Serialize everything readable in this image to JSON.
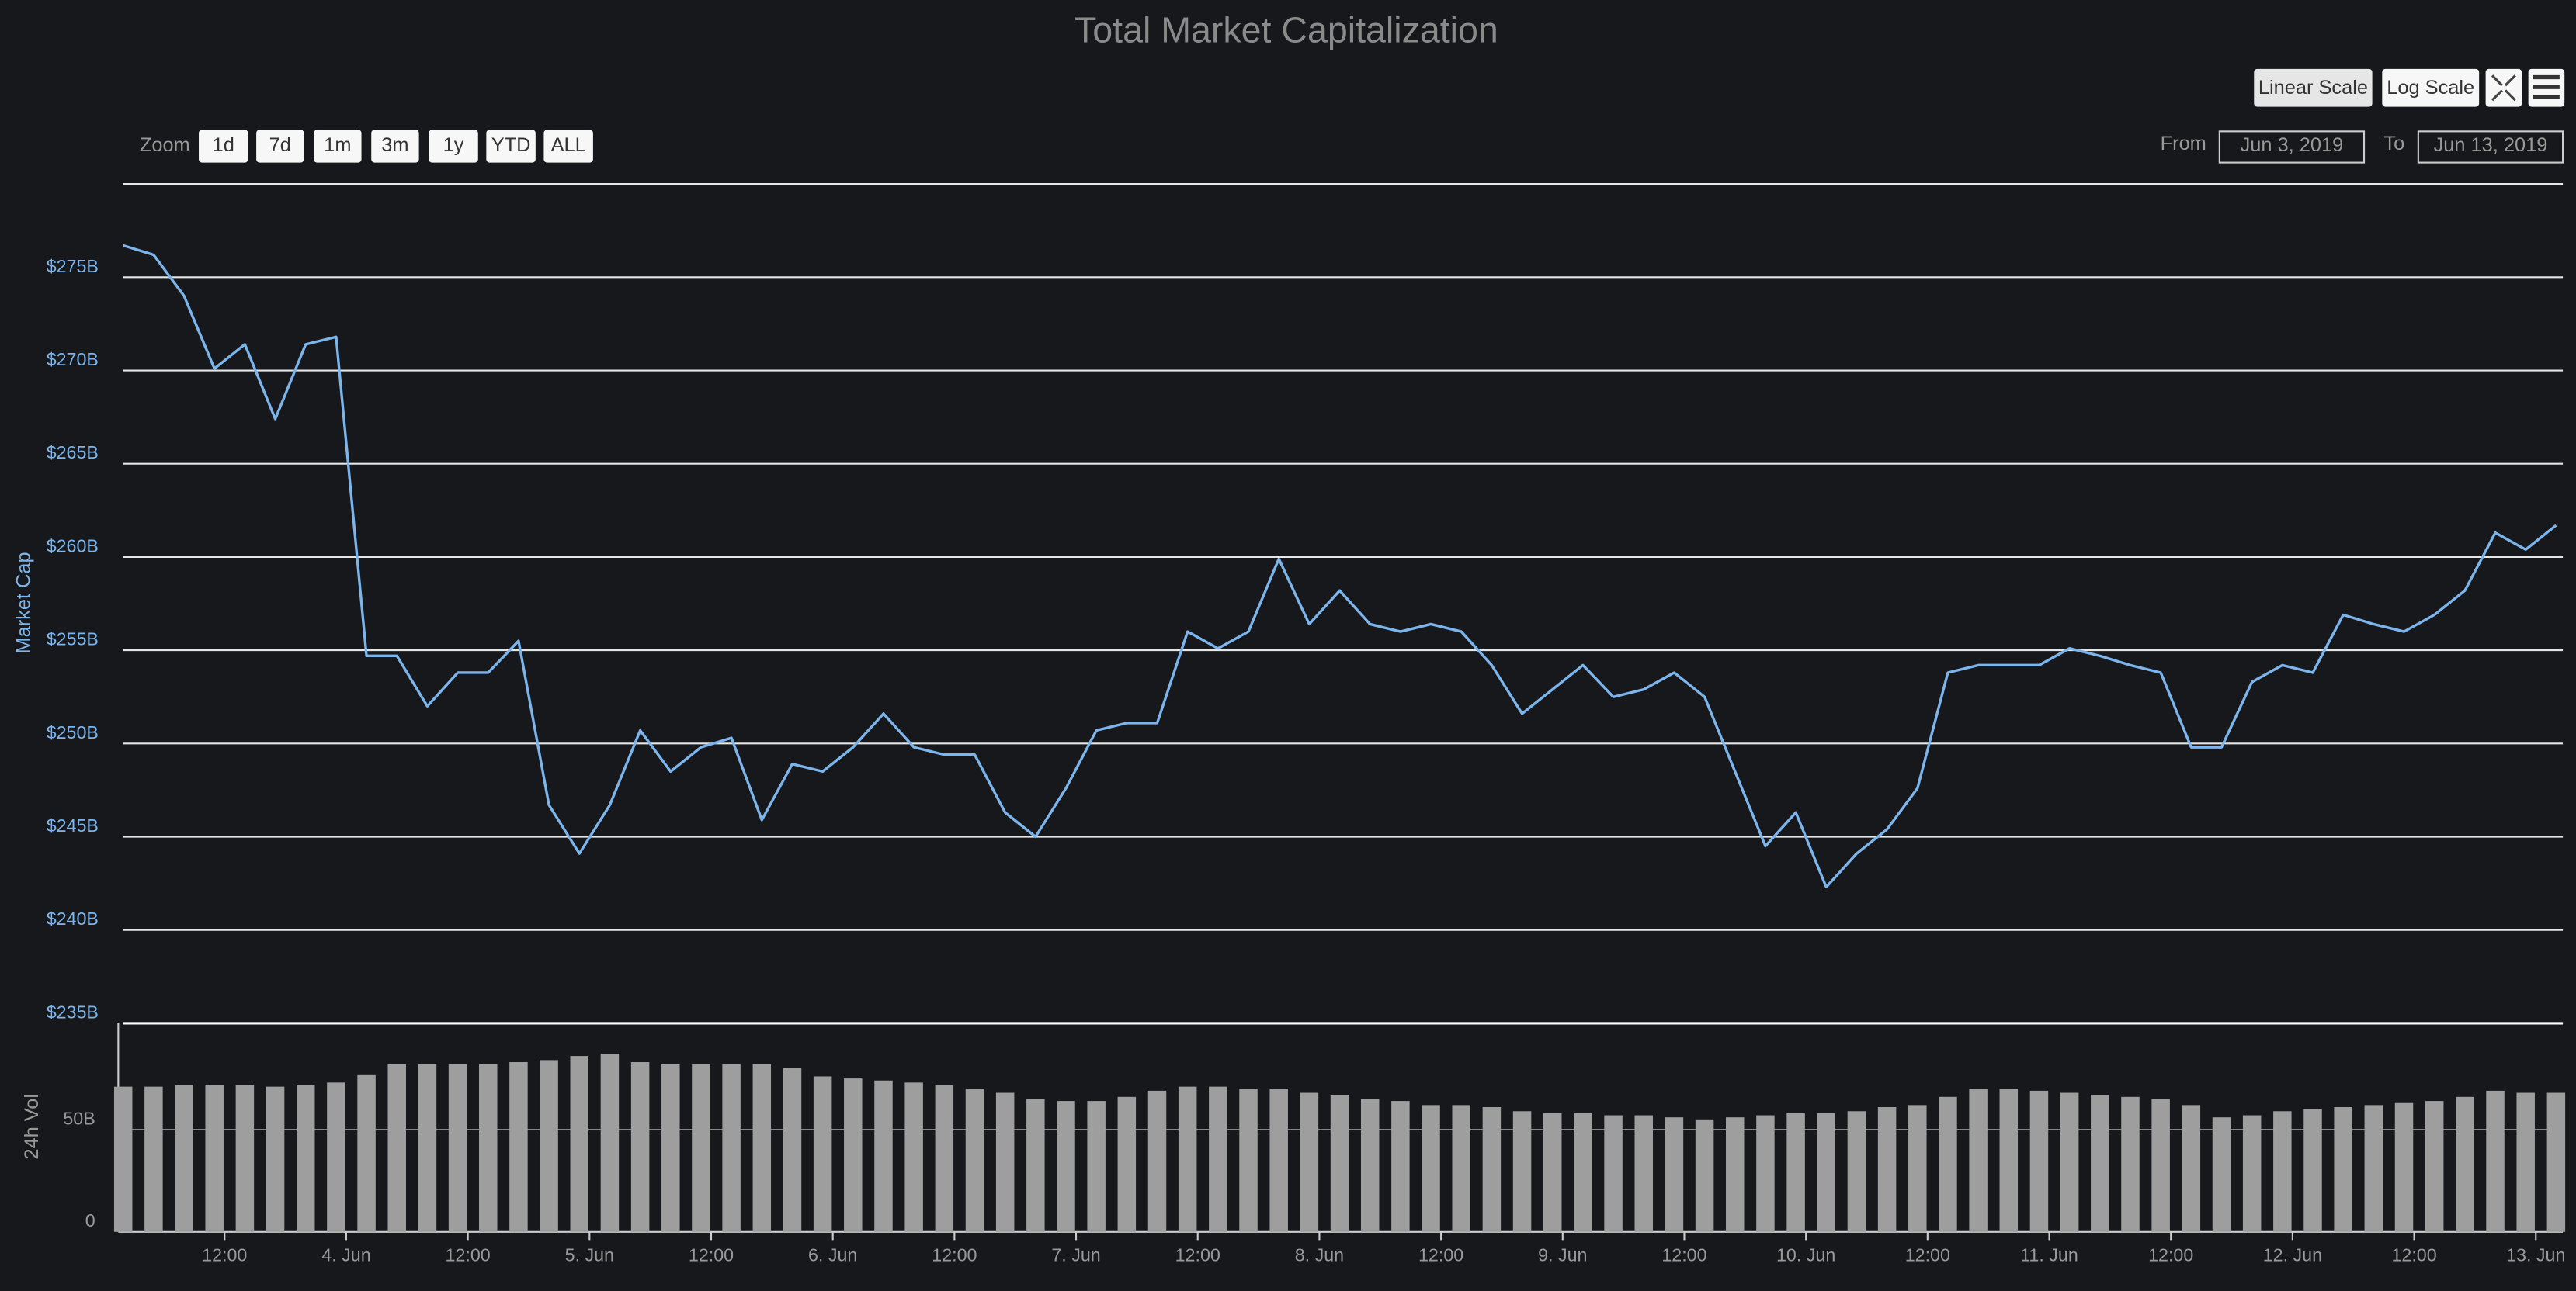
{
  "chart_data": {
    "type": "line",
    "title": "Total Market Capitalization",
    "zoom_label": "Zoom",
    "zoom_buttons": [
      "1d",
      "7d",
      "1m",
      "3m",
      "1y",
      "YTD",
      "ALL"
    ],
    "scale_buttons": [
      "Linear Scale",
      "Log Scale"
    ],
    "range_selector": {
      "from_label": "From",
      "from": "Jun 3, 2019",
      "to_label": "To",
      "to": "Jun 13, 2019"
    },
    "ylabel": "Market Cap",
    "y2label": "24h Vol",
    "x": [
      "2019-06-03 02:00",
      "2019-06-03 05:00",
      "2019-06-03 08:00",
      "2019-06-03 11:00",
      "2019-06-03 14:00",
      "2019-06-03 17:00",
      "2019-06-03 20:00",
      "2019-06-03 23:00",
      "2019-06-04 02:00",
      "2019-06-04 05:00",
      "2019-06-04 08:00",
      "2019-06-04 11:00",
      "2019-06-04 14:00",
      "2019-06-04 17:00",
      "2019-06-04 20:00",
      "2019-06-04 23:00",
      "2019-06-05 02:00",
      "2019-06-05 05:00",
      "2019-06-05 08:00",
      "2019-06-05 11:00",
      "2019-06-05 14:00",
      "2019-06-05 17:00",
      "2019-06-05 20:00",
      "2019-06-05 23:00",
      "2019-06-06 02:00",
      "2019-06-06 05:00",
      "2019-06-06 08:00",
      "2019-06-06 11:00",
      "2019-06-06 14:00",
      "2019-06-06 17:00",
      "2019-06-06 20:00",
      "2019-06-06 23:00",
      "2019-06-07 02:00",
      "2019-06-07 05:00",
      "2019-06-07 08:00",
      "2019-06-07 11:00",
      "2019-06-07 14:00",
      "2019-06-07 17:00",
      "2019-06-07 20:00",
      "2019-06-07 23:00",
      "2019-06-08 02:00",
      "2019-06-08 05:00",
      "2019-06-08 08:00",
      "2019-06-08 11:00",
      "2019-06-08 14:00",
      "2019-06-08 17:00",
      "2019-06-08 20:00",
      "2019-06-08 23:00",
      "2019-06-09 02:00",
      "2019-06-09 05:00",
      "2019-06-09 08:00",
      "2019-06-09 11:00",
      "2019-06-09 14:00",
      "2019-06-09 17:00",
      "2019-06-09 20:00",
      "2019-06-09 23:00",
      "2019-06-10 02:00",
      "2019-06-10 05:00",
      "2019-06-10 08:00",
      "2019-06-10 11:00",
      "2019-06-10 14:00",
      "2019-06-10 17:00",
      "2019-06-10 20:00",
      "2019-06-10 23:00",
      "2019-06-11 02:00",
      "2019-06-11 05:00",
      "2019-06-11 08:00",
      "2019-06-11 11:00",
      "2019-06-11 14:00",
      "2019-06-11 17:00",
      "2019-06-11 20:00",
      "2019-06-11 23:00",
      "2019-06-12 02:00",
      "2019-06-12 05:00",
      "2019-06-12 08:00",
      "2019-06-12 11:00",
      "2019-06-12 14:00",
      "2019-06-12 17:00",
      "2019-06-12 20:00",
      "2019-06-12 23:00",
      "2019-06-13 02:00"
    ],
    "series": [
      {
        "type": "line",
        "color": "#7cb5ec",
        "values": [
          276.7,
          276.2,
          274.0,
          270.1,
          271.4,
          267.4,
          271.4,
          271.8,
          254.7,
          254.7,
          252.0,
          253.8,
          253.8,
          255.5,
          246.7,
          244.1,
          246.7,
          250.7,
          248.5,
          249.8,
          250.3,
          245.9,
          248.9,
          248.5,
          249.8,
          251.6,
          249.8,
          249.4,
          249.4,
          246.3,
          245.0,
          247.6,
          250.7,
          251.1,
          251.1,
          256.0,
          255.1,
          256.0,
          259.9,
          256.4,
          258.2,
          256.4,
          256.0,
          256.4,
          256.0,
          254.2,
          251.6,
          252.9,
          254.2,
          252.5,
          252.9,
          253.8,
          252.5,
          248.5,
          244.5,
          246.3,
          242.3,
          244.1,
          245.4,
          247.6,
          253.8,
          254.2,
          254.2,
          254.2,
          255.1,
          254.7,
          254.2,
          253.8,
          249.8,
          249.8,
          253.3,
          254.2,
          253.8,
          256.9,
          256.4,
          256.0,
          256.9,
          258.2,
          261.3,
          260.4,
          261.7
        ]
      },
      {
        "type": "bar",
        "axis": "y2",
        "color": "#9e9e9e",
        "values": [
          71,
          71,
          72,
          72,
          72,
          71,
          72,
          73,
          77,
          82,
          82,
          82,
          82,
          83,
          84,
          86,
          87,
          83,
          82,
          82,
          82,
          82,
          80,
          76,
          75,
          74,
          73,
          72,
          70,
          68,
          65,
          64,
          64,
          66,
          69,
          71,
          71,
          70,
          70,
          68,
          67,
          65,
          64,
          62,
          62,
          61,
          59,
          58,
          58,
          57,
          57,
          56,
          55,
          56,
          57,
          58,
          58,
          59,
          61,
          62,
          66,
          70,
          70,
          69,
          68,
          67,
          66,
          65,
          62,
          56,
          57,
          59,
          60,
          61,
          62,
          63,
          64,
          66,
          69,
          68,
          68
        ]
      }
    ],
    "xlim": [
      "2019-06-03 02:00",
      "2019-06-13 02:40"
    ],
    "xticks": [
      {
        "value": "2019-06-03 12:00",
        "label": "12:00"
      },
      {
        "value": "2019-06-04 00:00",
        "label": "4. Jun"
      },
      {
        "value": "2019-06-04 12:00",
        "label": "12:00"
      },
      {
        "value": "2019-06-05 00:00",
        "label": "5. Jun"
      },
      {
        "value": "2019-06-05 12:00",
        "label": "12:00"
      },
      {
        "value": "2019-06-06 00:00",
        "label": "6. Jun"
      },
      {
        "value": "2019-06-06 12:00",
        "label": "12:00"
      },
      {
        "value": "2019-06-07 00:00",
        "label": "7. Jun"
      },
      {
        "value": "2019-06-07 12:00",
        "label": "12:00"
      },
      {
        "value": "2019-06-08 00:00",
        "label": "8. Jun"
      },
      {
        "value": "2019-06-08 12:00",
        "label": "12:00"
      },
      {
        "value": "2019-06-09 00:00",
        "label": "9. Jun"
      },
      {
        "value": "2019-06-09 12:00",
        "label": "12:00"
      },
      {
        "value": "2019-06-10 00:00",
        "label": "10. Jun"
      },
      {
        "value": "2019-06-10 12:00",
        "label": "12:00"
      },
      {
        "value": "2019-06-11 00:00",
        "label": "11. Jun"
      },
      {
        "value": "2019-06-11 12:00",
        "label": "12:00"
      },
      {
        "value": "2019-06-12 00:00",
        "label": "12. Jun"
      },
      {
        "value": "2019-06-12 12:00",
        "label": "12:00"
      },
      {
        "value": "2019-06-13 00:00",
        "label": "13. Jun"
      }
    ],
    "ylim": [
      235,
      280
    ],
    "yticks": [
      {
        "value": 235,
        "label": "$235B"
      },
      {
        "value": 240,
        "label": "$240B"
      },
      {
        "value": 245,
        "label": "$245B"
      },
      {
        "value": 250,
        "label": "$250B"
      },
      {
        "value": 255,
        "label": "$255B"
      },
      {
        "value": 260,
        "label": "$260B"
      },
      {
        "value": 265,
        "label": "$265B"
      },
      {
        "value": 270,
        "label": "$270B"
      },
      {
        "value": 275,
        "label": "$275B"
      }
    ],
    "y2lim": [
      0,
      102
    ],
    "y2ticks": [
      0,
      {
        "value": 50,
        "label": "50B"
      }
    ],
    "grid": true
  }
}
